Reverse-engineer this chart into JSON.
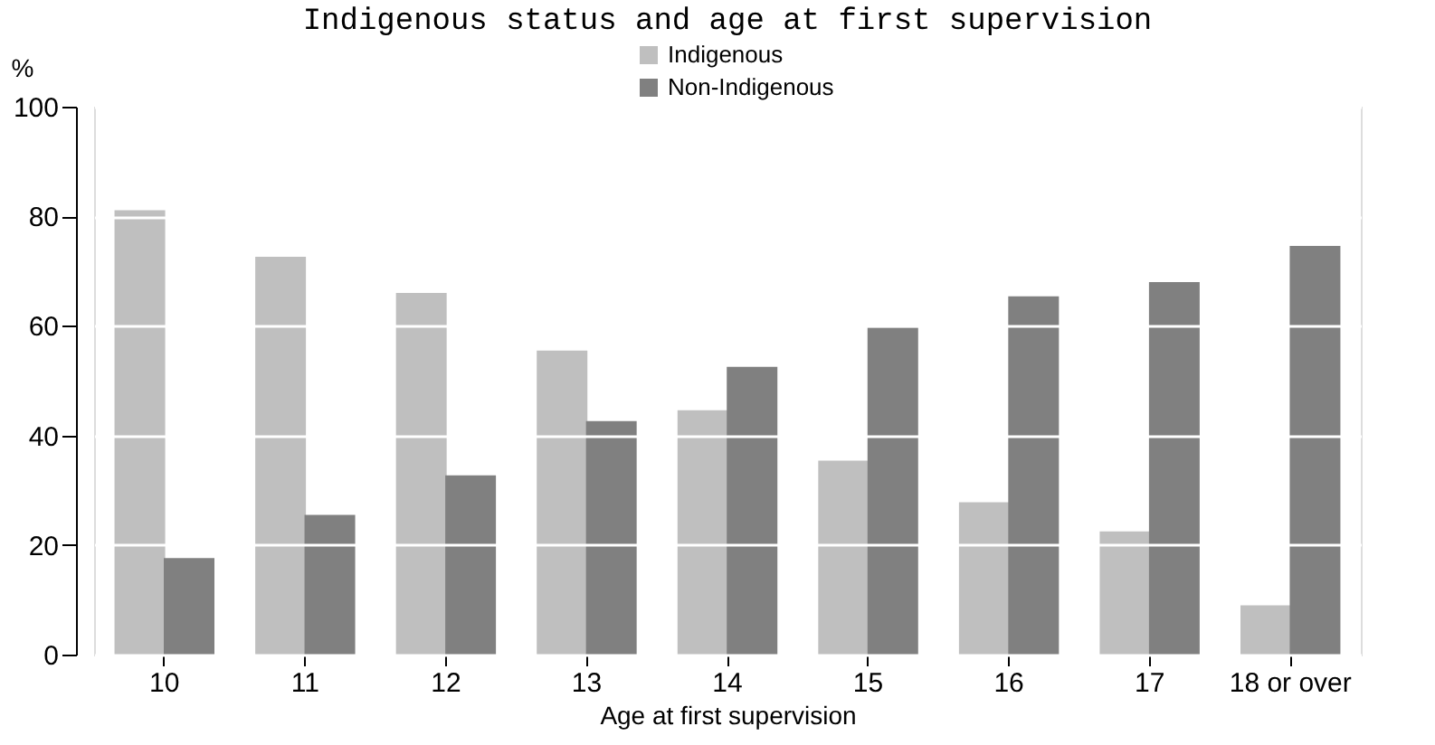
{
  "chart_data": {
    "type": "bar",
    "title": "Indigenous status and age at first supervision",
    "xlabel": "Age at first supervision",
    "ylabel": "%",
    "categories": [
      "10",
      "11",
      "12",
      "13",
      "14",
      "15",
      "16",
      "17",
      "18 or over"
    ],
    "series": [
      {
        "name": "Indigenous",
        "color": "#bfbfbf",
        "values": [
          81.1,
          72.6,
          66,
          55.5,
          44.6,
          35.4,
          27.8,
          22.5,
          9
        ]
      },
      {
        "name": "Non-Indigenous",
        "color": "#808080",
        "values": [
          17.6,
          25.5,
          32.7,
          42.6,
          52.5,
          59.7,
          65.4,
          68,
          74.6
        ]
      }
    ],
    "ylim": [
      0,
      100
    ],
    "yticks": [
      0,
      20,
      40,
      60,
      80,
      100
    ],
    "grid": "y",
    "legend": "top"
  }
}
